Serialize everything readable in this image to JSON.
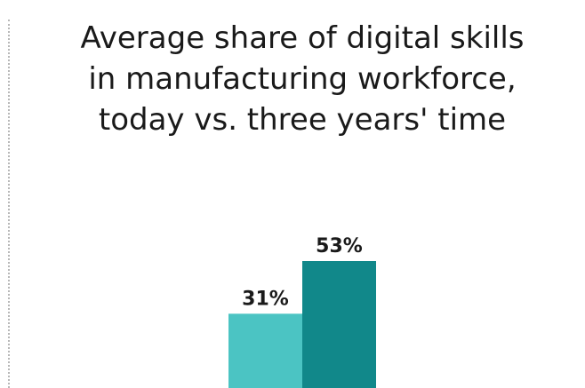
{
  "chart_data": {
    "type": "bar",
    "title": "Average share of digital skills\nin manufacturing workforce,\ntoday vs. three years' time",
    "ylim": [
      0,
      70
    ],
    "series": [
      {
        "values": [
          31
        ],
        "color": "#4bc4c3",
        "label": "31%"
      },
      {
        "values": [
          53
        ],
        "color": "#11888a",
        "label": "53%"
      }
    ]
  }
}
